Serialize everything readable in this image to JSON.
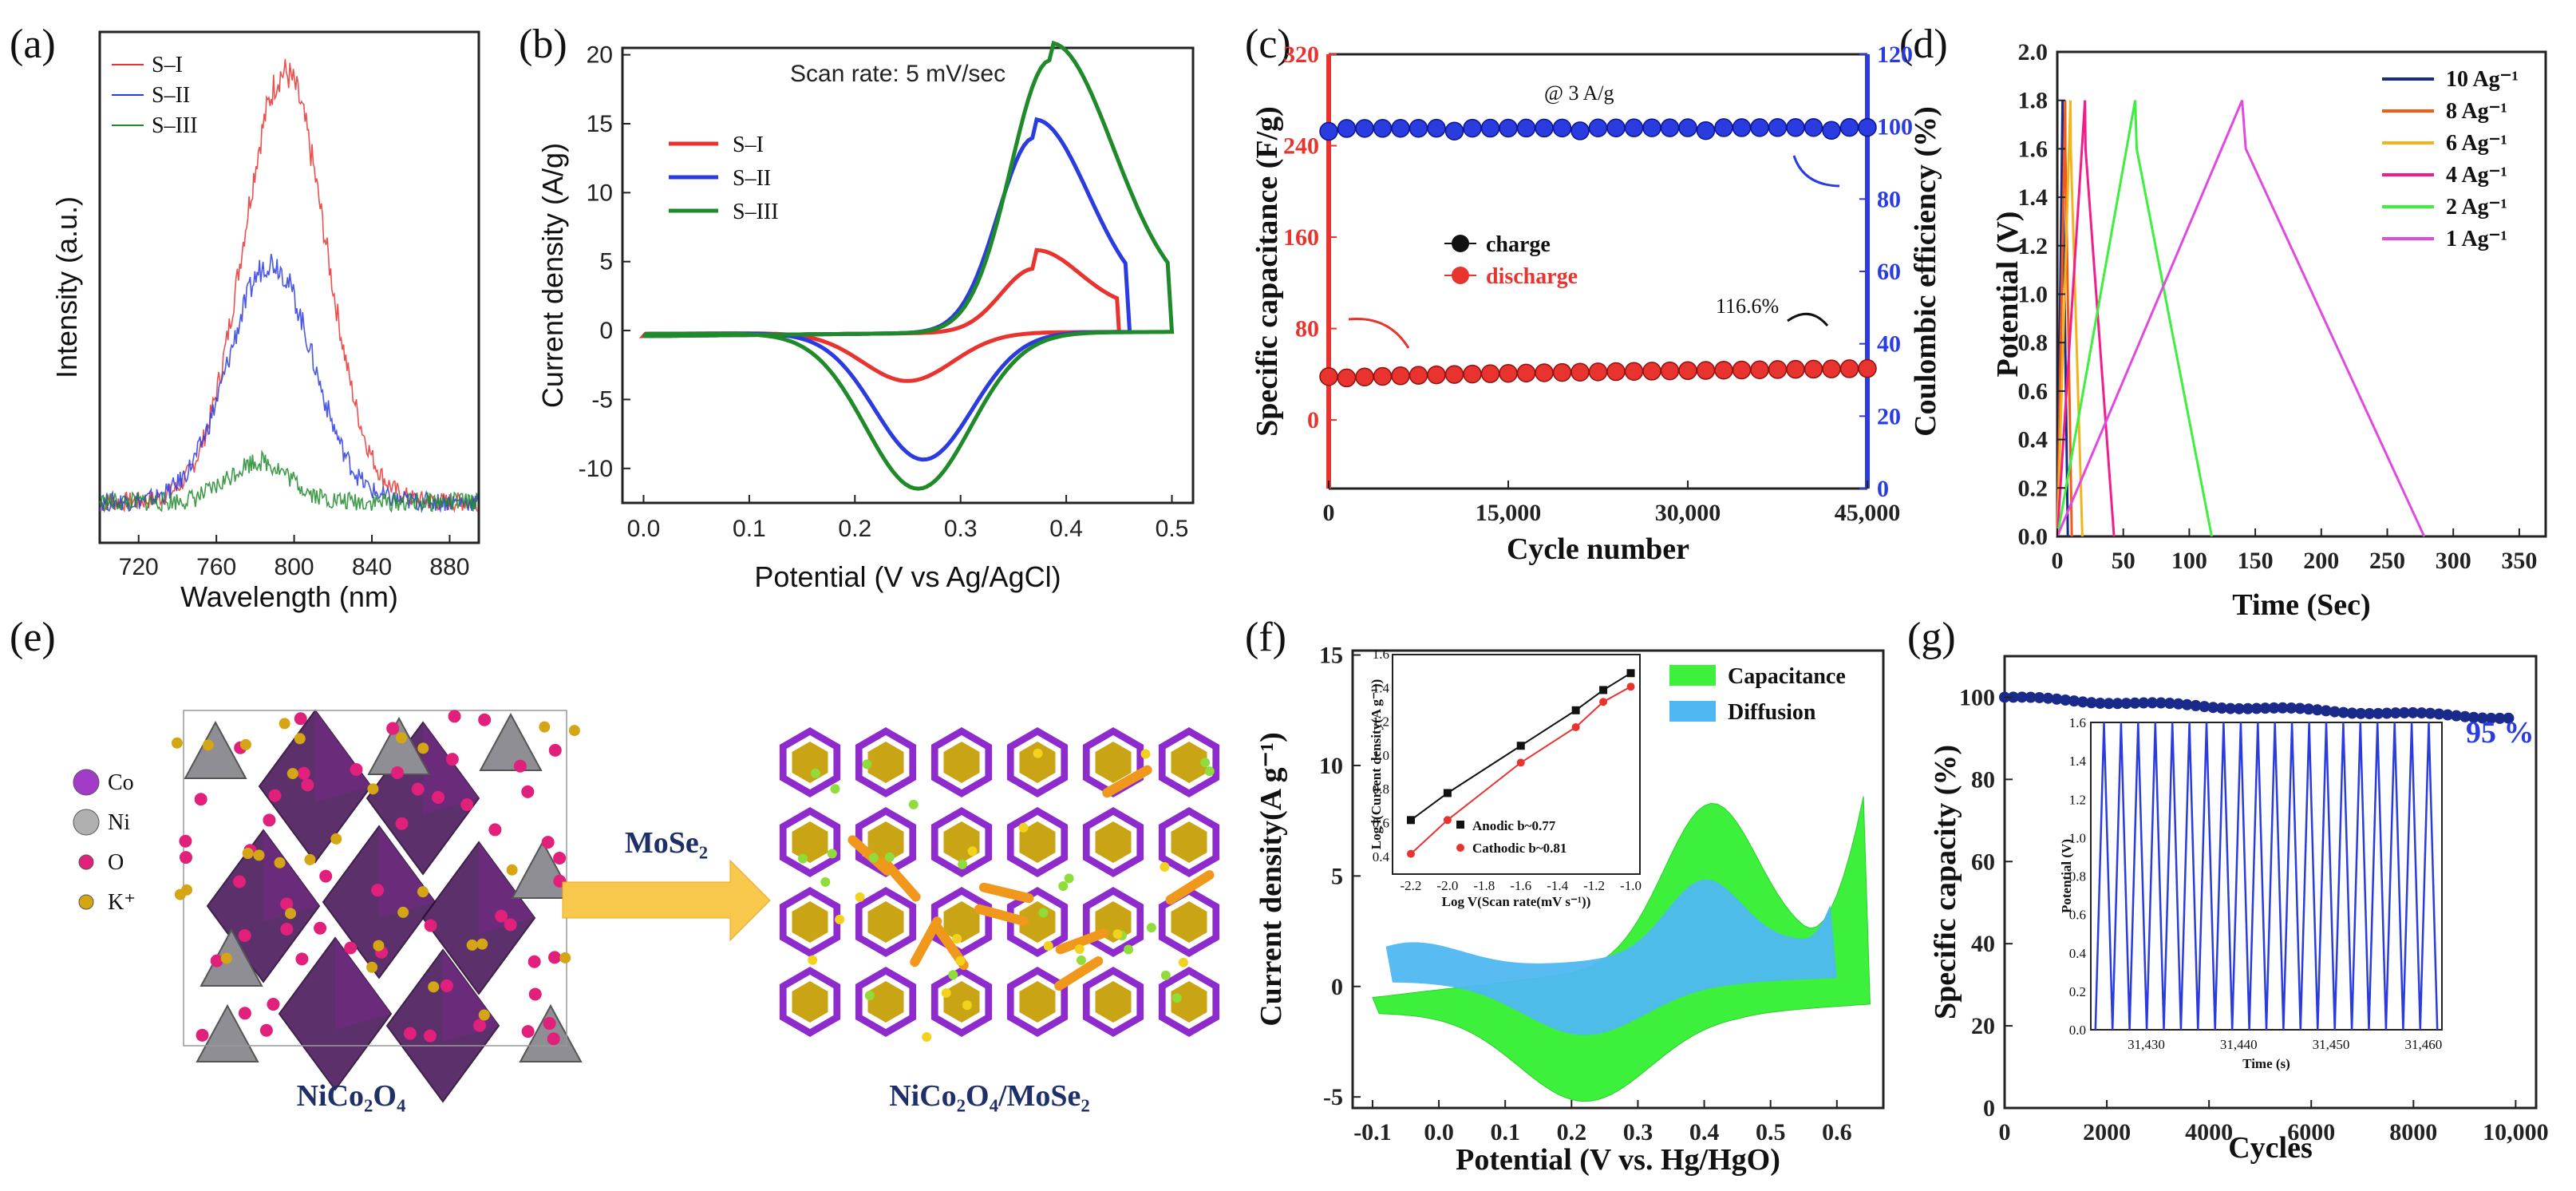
{
  "panel_labels": [
    "(a)",
    "(b)",
    "(c)",
    "(d)",
    "(e)",
    "(f)",
    "(g)"
  ],
  "colors": {
    "red": "#e8332f",
    "blue": "#2a3be0",
    "green": "#1f8a2a",
    "lime": "#3cf03c",
    "sky": "#4fb8f2",
    "navy": "#1a2a8a",
    "purple": "#8a2bd0",
    "gold": "#d4a514"
  },
  "chart_data": [
    {
      "id": "a",
      "type": "line",
      "title": "",
      "xlabel": "Wavelength (nm)",
      "ylabel": "Intensity (a.u.)",
      "xlim": [
        700,
        895
      ],
      "ylim": [
        0,
        1
      ],
      "x_ticks": [
        "720",
        "760",
        "800",
        "840",
        "880"
      ],
      "series": [
        {
          "name": "S–I",
          "peak_x": 795,
          "peak_y": 0.92,
          "base": 0.08
        },
        {
          "name": "S–II",
          "peak_x": 788,
          "peak_y": 0.55,
          "base": 0.08
        },
        {
          "name": "S–III",
          "peak_x": 782,
          "peak_y": 0.16,
          "base": 0.08
        }
      ]
    },
    {
      "id": "b",
      "type": "line",
      "title": "Scan rate: 5 mV/sec",
      "xlabel": "Potential (V vs Ag/AgCl)",
      "ylabel": "Current density (A/g)",
      "xlim": [
        -0.02,
        0.52
      ],
      "ylim": [
        -12.5,
        20.5
      ],
      "x_ticks": [
        "0.0",
        "0.1",
        "0.2",
        "0.3",
        "0.4",
        "0.5"
      ],
      "y_ticks": [
        "-10",
        "-5",
        "0",
        "5",
        "10",
        "15",
        "20"
      ],
      "series": [
        {
          "name": "S–I",
          "anodic_peak": [
            0.37,
            4.6
          ],
          "cathodic_peak": [
            0.25,
            -3.5
          ]
        },
        {
          "name": "S–II",
          "anodic_peak": [
            0.37,
            14.1
          ],
          "cathodic_peak": [
            0.265,
            -9.2
          ]
        },
        {
          "name": "S–III",
          "anodic_peak": [
            0.385,
            19.7
          ],
          "cathodic_peak": [
            0.26,
            -11.3
          ]
        }
      ]
    },
    {
      "id": "c",
      "type": "scatter",
      "title": "@ 3 A/g",
      "xlabel": "Cycle number",
      "ylabel": "Specific capacitance (F/g)",
      "y2label": "Coulombic efficiency (%)",
      "xlim": [
        0,
        45000
      ],
      "ylim": [
        -60,
        320
      ],
      "y2lim": [
        0,
        120
      ],
      "x_ticks": [
        "0",
        "15,000",
        "30,000",
        "45,000"
      ],
      "y_ticks": [
        "0",
        "80",
        "160",
        "240",
        "320"
      ],
      "y2_ticks": [
        "0",
        "20",
        "40",
        "60",
        "80",
        "100",
        "120"
      ],
      "legend": [
        "charge",
        "discharge"
      ],
      "annotation": "116.6%",
      "efficiency": {
        "start": 99.5,
        "end": 99.8
      },
      "capacitance": {
        "start": 35,
        "end": 45
      }
    },
    {
      "id": "d",
      "type": "line",
      "title": "",
      "xlabel": "Time (Sec)",
      "ylabel": "Potential (V)",
      "xlim": [
        0,
        370
      ],
      "ylim": [
        0,
        2.0
      ],
      "x_ticks": [
        "0",
        "50",
        "100",
        "150",
        "200",
        "250",
        "300",
        "350"
      ],
      "y_ticks": [
        "0.0",
        "0.2",
        "0.4",
        "0.6",
        "0.8",
        "1.0",
        "1.2",
        "1.4",
        "1.6",
        "1.8",
        "2.0"
      ],
      "series": [
        {
          "name": "10 Ag⁻¹",
          "t_peak": 4,
          "t_end": 8
        },
        {
          "name": "8 Ag⁻¹",
          "t_peak": 6,
          "t_end": 11
        },
        {
          "name": "6 Ag⁻¹",
          "t_peak": 10,
          "t_end": 19
        },
        {
          "name": "4 Ag⁻¹",
          "t_peak": 21,
          "t_end": 43
        },
        {
          "name": "2 Ag⁻¹",
          "t_peak": 59,
          "t_end": 117
        },
        {
          "name": "1 Ag⁻¹",
          "t_peak": 140,
          "t_end": 278
        }
      ]
    },
    {
      "id": "f",
      "type": "area",
      "xlabel": "Potential (V vs. Hg/HgO)",
      "ylabel": "Current density(A g⁻¹)",
      "xlim": [
        -0.13,
        0.67
      ],
      "ylim": [
        -5.5,
        15.2
      ],
      "x_ticks": [
        "-0.1",
        "0.0",
        "0.1",
        "0.2",
        "0.3",
        "0.4",
        "0.5",
        "0.6"
      ],
      "y_ticks": [
        "-5",
        "0",
        "5",
        "10",
        "15"
      ],
      "legend": [
        "Capacitance",
        "Diffusion"
      ],
      "inset": {
        "xlabel": "Log V(Scan rate(mV s⁻¹))",
        "ylabel": "Log i(Current density(A g⁻¹))",
        "xlim": [
          -2.3,
          -0.95
        ],
        "ylim": [
          0.3,
          1.6
        ],
        "x_ticks": [
          "-2.2",
          "-2.0",
          "-1.8",
          "-1.6",
          "-1.4",
          "-1.2",
          "-1.0"
        ],
        "y_ticks": [
          "0.4",
          "0.6",
          "0.8",
          "1.0",
          "1.2",
          "1.4",
          "1.6"
        ],
        "series": [
          {
            "name": "Anodic b~0.77",
            "x": [
              -2.2,
              -2.0,
              -1.6,
              -1.3,
              -1.15,
              -1.0
            ],
            "y": [
              0.62,
              0.78,
              1.06,
              1.27,
              1.39,
              1.49
            ]
          },
          {
            "name": "Cathodic b~0.81",
            "x": [
              -2.2,
              -2.0,
              -1.6,
              -1.3,
              -1.15,
              -1.0
            ],
            "y": [
              0.42,
              0.62,
              0.96,
              1.17,
              1.32,
              1.41
            ]
          }
        ]
      }
    },
    {
      "id": "g",
      "type": "scatter",
      "xlabel": "Cycles",
      "ylabel": "Specific capacity (%)",
      "xlim": [
        0,
        10400
      ],
      "ylim": [
        0,
        110
      ],
      "x_ticks": [
        "0",
        "2000",
        "4000",
        "6000",
        "8000",
        "10,000"
      ],
      "y_ticks": [
        "0",
        "20",
        "40",
        "60",
        "80",
        "100"
      ],
      "annotation": "95 %",
      "retention": {
        "start": 100,
        "end": 95
      },
      "inset": {
        "xlabel": "Time (s)",
        "ylabel": "Potential (V)",
        "xlim": [
          31424,
          31462
        ],
        "ylim": [
          0,
          1.6
        ],
        "x_ticks": [
          "31,430",
          "31,440",
          "31,450",
          "31,460"
        ],
        "y_ticks": [
          "0.0",
          "0.2",
          "0.4",
          "0.6",
          "0.8",
          "1.0",
          "1.2",
          "1.4",
          "1.6"
        ],
        "cycles": 20
      }
    }
  ],
  "diagram_e": {
    "legend": [
      "Co",
      "Ni",
      "O",
      "K⁺"
    ],
    "arrow_label": "MoSe₂",
    "left_caption": "NiCo₂O₄",
    "right_caption": "NiCo₂O₄/MoSe₂"
  }
}
